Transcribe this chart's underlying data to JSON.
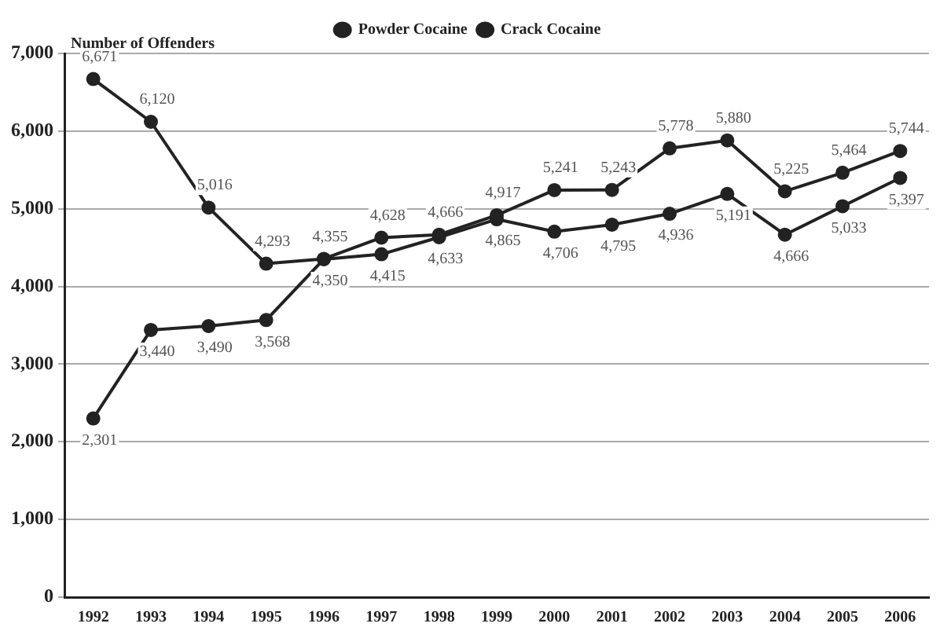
{
  "chart_data": {
    "type": "line",
    "ylabel": "Number of Offenders",
    "categories": [
      "1992",
      "1993",
      "1994",
      "1995",
      "1996",
      "1997",
      "1998",
      "1999",
      "2000",
      "2001",
      "2002",
      "2003",
      "2004",
      "2005",
      "2006"
    ],
    "series": [
      {
        "name": "Powder Cocaine",
        "color": "#222222",
        "values": [
          6671,
          6120,
          5016,
          4293,
          4355,
          4628,
          4666,
          4917,
          5241,
          5243,
          5778,
          5880,
          5225,
          5464,
          5744
        ],
        "value_labels": [
          "6,671",
          "6,120",
          "5,016",
          "4,293",
          "4,355",
          "4,628",
          "4,666",
          "4,917",
          "5,241",
          "5,243",
          "5,778",
          "5,880",
          "5,225",
          "5,464",
          "5,744"
        ]
      },
      {
        "name": "Crack Cocaine",
        "color": "#222222",
        "values": [
          2301,
          3440,
          3490,
          3568,
          4350,
          4415,
          4633,
          4865,
          4706,
          4795,
          4936,
          5191,
          4666,
          5033,
          5397
        ],
        "value_labels": [
          "2,301",
          "3,440",
          "3,490",
          "3,568",
          "4,350",
          "4,415",
          "4,633",
          "4,865",
          "4,706",
          "4,795",
          "4,936",
          "5,191",
          "4,666",
          "5,033",
          "5,397"
        ]
      }
    ],
    "ylim": [
      0,
      7000
    ],
    "yticks": [
      {
        "value": 0,
        "label": "0"
      },
      {
        "value": 1000,
        "label": "1,000"
      },
      {
        "value": 2000,
        "label": "2,000"
      },
      {
        "value": 3000,
        "label": "3,000"
      },
      {
        "value": 4000,
        "label": "4,000"
      },
      {
        "value": 5000,
        "label": "5,000"
      },
      {
        "value": 6000,
        "label": "6,000"
      },
      {
        "value": 7000,
        "label": "7,000"
      }
    ],
    "grid": "y",
    "legend": "top",
    "marker": "circle",
    "line_style": "solid"
  }
}
